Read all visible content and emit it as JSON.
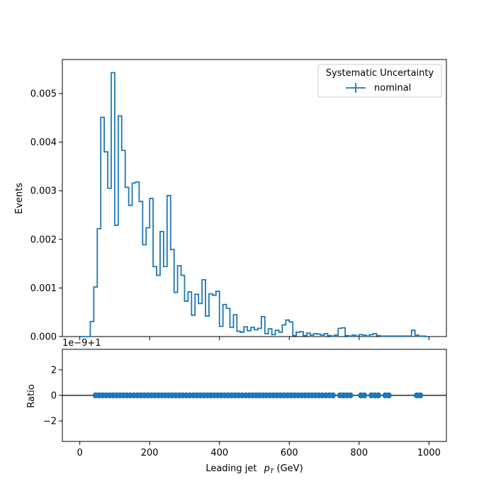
{
  "chart_data": [
    {
      "type": "histogram",
      "panel": "main",
      "ylabel": "Events",
      "ylim": [
        0,
        0.0057
      ],
      "xlim": [
        -50,
        1050
      ],
      "yticks": [
        0.0,
        0.001,
        0.002,
        0.003,
        0.004,
        0.005
      ],
      "ytick_labels": [
        "0.000",
        "0.001",
        "0.002",
        "0.003",
        "0.004",
        "0.005"
      ],
      "bin_width": 10,
      "bin_start": 0,
      "legend": {
        "title": "Systematic Uncertainty",
        "entries": [
          "nominal"
        ],
        "position": "top-right"
      },
      "series": [
        {
          "name": "nominal",
          "color": "#1f77b4",
          "values": [
            0,
            0,
            0.0,
            0.00031,
            0.00102,
            0.00222,
            0.00451,
            0.0038,
            0.00305,
            0.00543,
            0.00229,
            0.00454,
            0.00383,
            0.00307,
            0.0027,
            0.00316,
            0.00318,
            0.00278,
            0.00189,
            0.00224,
            0.00284,
            0.00144,
            0.00126,
            0.00216,
            0.00144,
            0.0029,
            0.00179,
            0.00091,
            0.00146,
            0.00126,
            0.00073,
            0.00092,
            0.00044,
            0.00087,
            0.00068,
            0.00117,
            0.00042,
            0.00088,
            0.00085,
            0.00093,
            0.00021,
            0.00066,
            0.00058,
            0.00019,
            0.00045,
            0.00011,
            9e-05,
            0.0002,
            0.00012,
            0.00019,
            0.00014,
            0.00017,
            0.00041,
            6e-05,
            0.00016,
            4e-05,
            0.00013,
            9e-05,
            0.00024,
            0.00034,
            0.0003,
            2e-05,
            9e-05,
            0.0001,
            2e-05,
            7e-05,
            3e-05,
            6e-05,
            5e-05,
            3e-05,
            6e-05,
            2e-05,
            1e-05,
            3e-05,
            0.00017,
            0.00018,
            2e-05,
            1e-05,
            3e-05,
            1e-05,
            4e-05,
            3e-05,
            1e-05,
            4e-05,
            6e-05,
            2e-05,
            1e-05,
            1e-05,
            1e-05,
            1e-05,
            1e-05,
            1e-05,
            1e-05,
            1e-05,
            1e-05,
            0.00013,
            3e-05,
            1e-05,
            1e-05,
            0
          ]
        }
      ]
    },
    {
      "type": "scatter",
      "panel": "ratio",
      "ylabel": "Ratio",
      "xlabel": "Leading jet  p_T (GeV)",
      "xlabel_main": "Leading jet ",
      "xlabel_p": "p",
      "xlabel_sub": "T",
      "xlabel_unit": " (GeV)",
      "offset_text": "1e−9+1",
      "xlim": [
        -50,
        1050
      ],
      "ylim": [
        -3.6,
        3.6
      ],
      "xticks": [
        0,
        200,
        400,
        600,
        800,
        1000
      ],
      "xtick_labels": [
        "0",
        "200",
        "400",
        "600",
        "800",
        "1000"
      ],
      "yticks": [
        -2,
        0,
        2
      ],
      "ytick_labels": [
        "−2",
        "0",
        "2"
      ],
      "reference_line": 0,
      "series": [
        {
          "name": "nominal",
          "color": "#1f77b4",
          "x": [
            45,
            55,
            65,
            75,
            85,
            95,
            105,
            115,
            125,
            135,
            145,
            155,
            165,
            175,
            185,
            195,
            205,
            215,
            225,
            235,
            245,
            255,
            265,
            275,
            285,
            295,
            305,
            315,
            325,
            335,
            345,
            355,
            365,
            375,
            385,
            395,
            405,
            415,
            425,
            435,
            445,
            455,
            465,
            475,
            485,
            495,
            505,
            515,
            525,
            535,
            545,
            555,
            565,
            575,
            585,
            595,
            605,
            615,
            625,
            635,
            645,
            655,
            665,
            675,
            685,
            695,
            705,
            715,
            725,
            745,
            755,
            765,
            775,
            805,
            815,
            835,
            845,
            855,
            875,
            885,
            965,
            975
          ],
          "y_fill": 0
        }
      ]
    }
  ]
}
